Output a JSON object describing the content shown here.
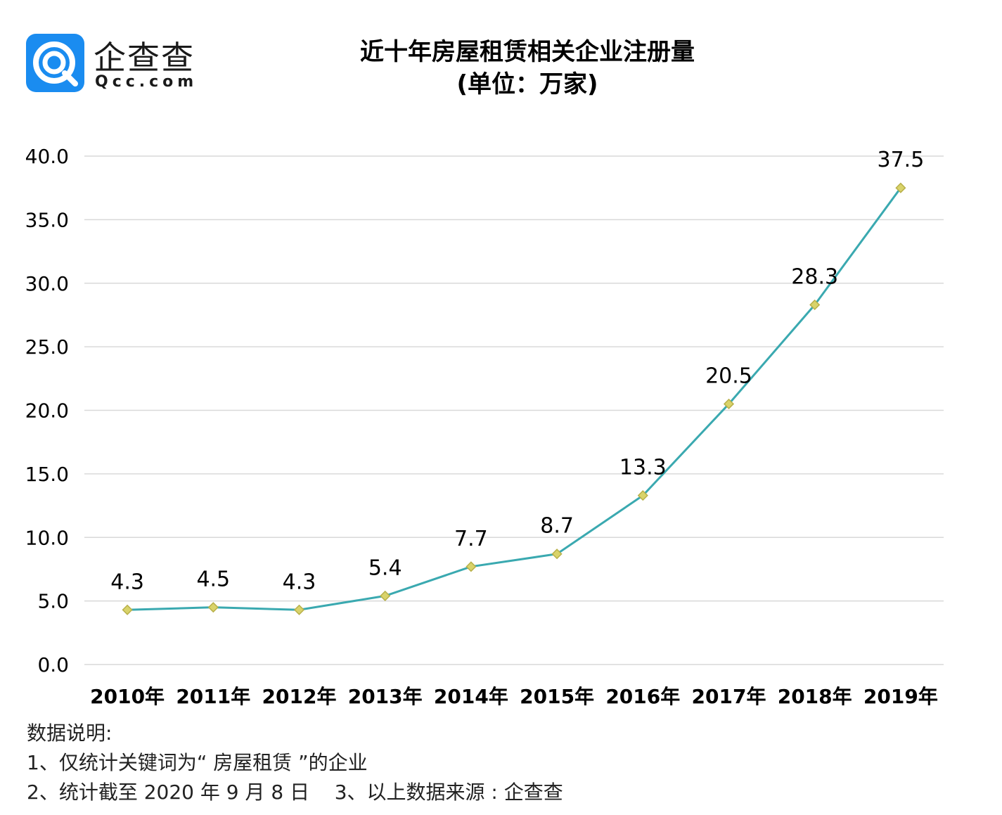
{
  "logo": {
    "name_cn": "企查查",
    "name_en": "Qcc.com",
    "color": "#1a8cf0"
  },
  "chart_data": {
    "type": "line",
    "title": "近十年房屋租赁相关企业注册量",
    "subtitle": "(单位：万家)",
    "categories": [
      "2010年",
      "2011年",
      "2012年",
      "2013年",
      "2014年",
      "2015年",
      "2016年",
      "2017年",
      "2018年",
      "2019年"
    ],
    "series": [
      {
        "values": [
          4.3,
          4.5,
          4.3,
          5.4,
          7.7,
          8.7,
          13.3,
          20.5,
          28.3,
          37.5
        ],
        "labels": [
          "4.3",
          "4.5",
          "4.3",
          "5.4",
          "7.7",
          "8.7",
          "13.3",
          "20.5",
          "28.3",
          "37.5"
        ],
        "color": "#3aa9b0",
        "marker_color": "#d9d36a",
        "marker": "diamond"
      }
    ],
    "ylim": [
      0,
      40
    ],
    "yticks": [
      0,
      5,
      10,
      15,
      20,
      25,
      30,
      35,
      40
    ],
    "ytick_labels": [
      "0.0",
      "5.0",
      "10.0",
      "15.0",
      "20.0",
      "25.0",
      "30.0",
      "35.0",
      "40.0"
    ],
    "grid": true,
    "legend": "none"
  },
  "notes": {
    "heading": "数据说明:",
    "line1": "1、仅统计关键词为“ 房屋租赁 ”的企业",
    "line2": "2、统计截至 2020 年 9 月 8 日    3、以上数据来源 : 企查查"
  }
}
